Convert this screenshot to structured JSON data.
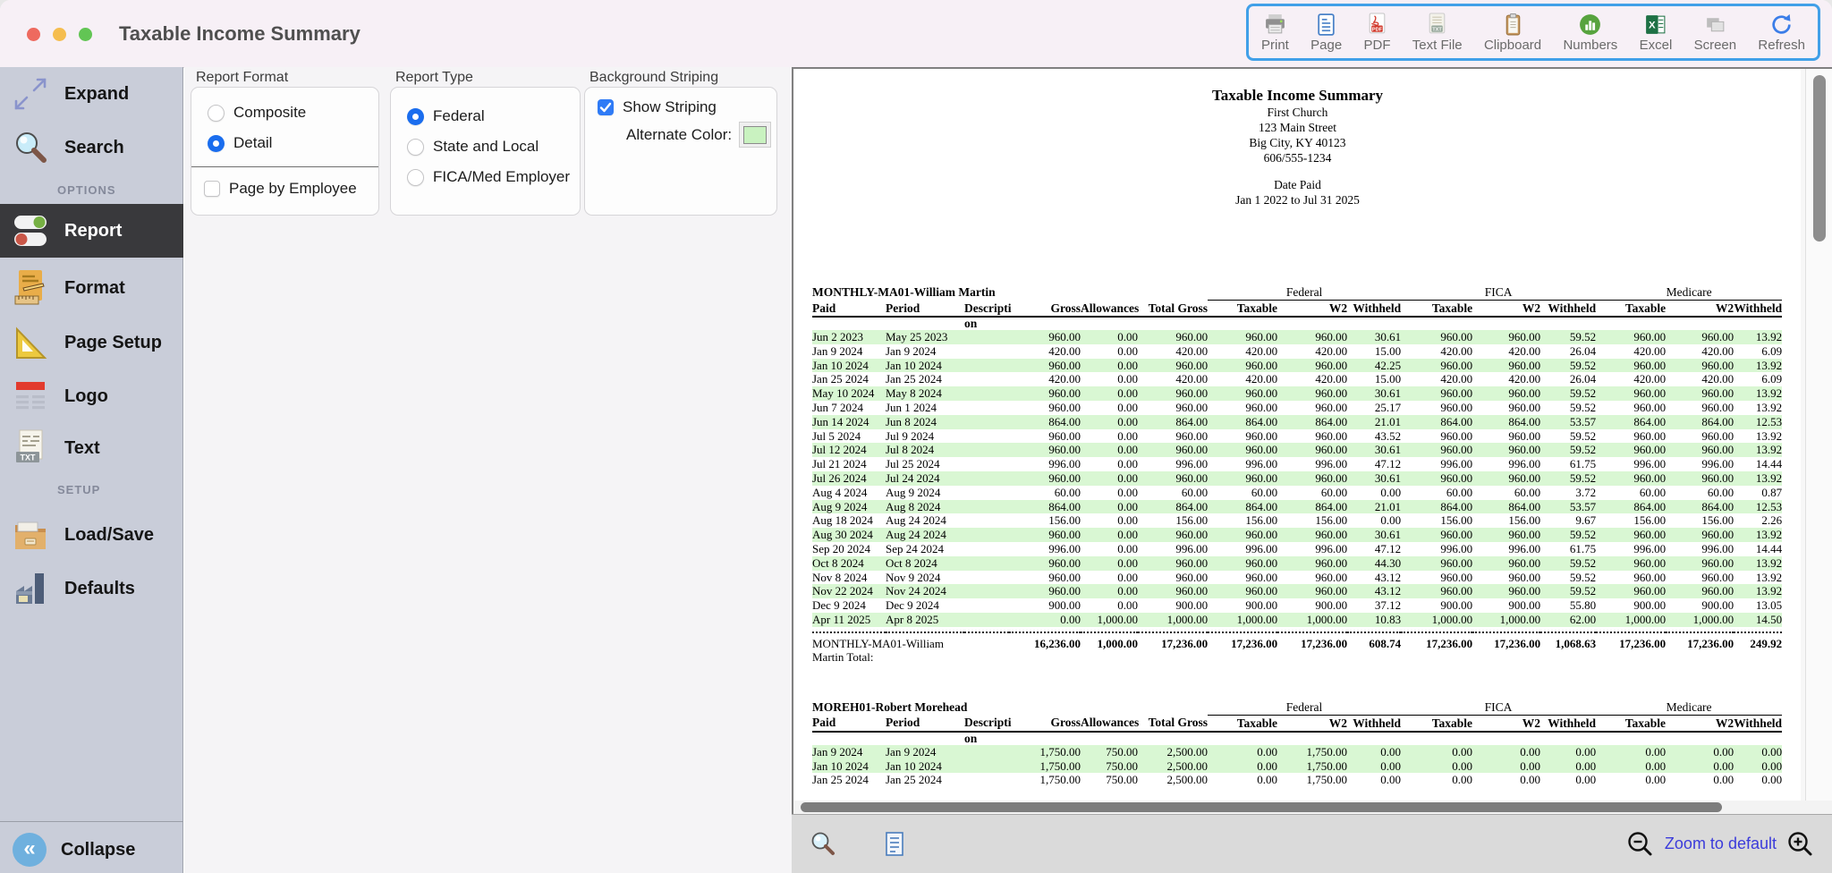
{
  "window": {
    "title": "Taxable Income Summary"
  },
  "toolbar": {
    "border_color": "#41a0e8",
    "items": [
      {
        "label": "Print",
        "icon": "printer-icon"
      },
      {
        "label": "Page",
        "icon": "page-icon"
      },
      {
        "label": "PDF",
        "icon": "pdf-file-icon"
      },
      {
        "label": "Text File",
        "icon": "txt-file-icon"
      },
      {
        "label": "Clipboard",
        "icon": "clipboard-icon"
      },
      {
        "label": "Numbers",
        "icon": "numbers-chart-icon"
      },
      {
        "label": "Excel",
        "icon": "excel-icon"
      },
      {
        "label": "Screen",
        "icon": "screen-icon"
      },
      {
        "label": "Refresh",
        "icon": "refresh-icon"
      }
    ]
  },
  "sidebar": {
    "items": [
      {
        "label": "Expand",
        "icon": "expand-icon"
      },
      {
        "label": "Search",
        "icon": "search-icon"
      },
      {
        "label": "Report",
        "icon": "toggles-icon",
        "selected": true
      },
      {
        "label": "Format",
        "icon": "format-doc-icon"
      },
      {
        "label": "Page Setup",
        "icon": "set-square-icon"
      },
      {
        "label": "Logo",
        "icon": "logo-banner-icon"
      },
      {
        "label": "Text",
        "icon": "txt-doc-icon"
      },
      {
        "label": "Load/Save",
        "icon": "folder-icon"
      },
      {
        "label": "Defaults",
        "icon": "factory-icon"
      }
    ],
    "options_header": "OPTIONS",
    "setup_header": "SETUP",
    "collapse_label": "Collapse"
  },
  "panels": {
    "report_format": {
      "title": "Report Format",
      "options": [
        {
          "label": "Composite",
          "checked": false
        },
        {
          "label": "Detail",
          "checked": true
        }
      ],
      "checkbox": {
        "label": "Page by Employee",
        "checked": false
      }
    },
    "report_type": {
      "title": "Report Type",
      "options": [
        {
          "label": "Federal",
          "checked": true
        },
        {
          "label": "State and Local",
          "checked": false
        },
        {
          "label": "FICA/Med Employer",
          "checked": false
        }
      ]
    },
    "background_striping": {
      "title": "Background Striping",
      "show_striping": {
        "label": "Show Striping",
        "checked": true
      },
      "alternate_color_label": "Alternate Color:",
      "alternate_color": "#c9f2c0"
    }
  },
  "report": {
    "header": {
      "title": "Taxable Income Summary",
      "company": "First Church",
      "address1": "123 Main Street",
      "address2": "Big City, KY  40123",
      "phone": "606/555-1234",
      "date_label": "Date Paid",
      "date_range": "Jan 1 2022 to Jul 31 2025"
    },
    "group_headers": [
      "Federal",
      "FICA",
      "Medicare"
    ],
    "columns": [
      "Paid",
      "Period",
      "Descripti",
      "Gross",
      "Allowances",
      "Total Gross",
      "Taxable",
      "W2",
      "Withheld",
      "Taxable",
      "W2",
      "Withheld",
      "Taxable",
      "W2",
      "Withheld"
    ],
    "description_overflow": "on",
    "stripe_color": "#d9f7d3",
    "sections": [
      {
        "employee": "MONTHLY-MA01-William Martin",
        "stripes": [
          1,
          0,
          1,
          0,
          1,
          0,
          1,
          0,
          1,
          0,
          1,
          0,
          1,
          0,
          1,
          0,
          1,
          0,
          1,
          0,
          1
        ],
        "rows": [
          [
            "Jun 2 2023",
            "May 25 2023",
            "",
            "960.00",
            "0.00",
            "960.00",
            "960.00",
            "960.00",
            "30.61",
            "960.00",
            "960.00",
            "59.52",
            "960.00",
            "960.00",
            "13.92"
          ],
          [
            "Jan 9 2024",
            "Jan 9 2024",
            "",
            "420.00",
            "0.00",
            "420.00",
            "420.00",
            "420.00",
            "15.00",
            "420.00",
            "420.00",
            "26.04",
            "420.00",
            "420.00",
            "6.09"
          ],
          [
            "Jan 10 2024",
            "Jan 10 2024",
            "",
            "960.00",
            "0.00",
            "960.00",
            "960.00",
            "960.00",
            "42.25",
            "960.00",
            "960.00",
            "59.52",
            "960.00",
            "960.00",
            "13.92"
          ],
          [
            "Jan 25 2024",
            "Jan 25 2024",
            "",
            "420.00",
            "0.00",
            "420.00",
            "420.00",
            "420.00",
            "15.00",
            "420.00",
            "420.00",
            "26.04",
            "420.00",
            "420.00",
            "6.09"
          ],
          [
            "May 10 2024",
            "May 8 2024",
            "",
            "960.00",
            "0.00",
            "960.00",
            "960.00",
            "960.00",
            "30.61",
            "960.00",
            "960.00",
            "59.52",
            "960.00",
            "960.00",
            "13.92"
          ],
          [
            "Jun 7 2024",
            "Jun 1 2024",
            "",
            "960.00",
            "0.00",
            "960.00",
            "960.00",
            "960.00",
            "25.17",
            "960.00",
            "960.00",
            "59.52",
            "960.00",
            "960.00",
            "13.92"
          ],
          [
            "Jun 14 2024",
            "Jun 8 2024",
            "",
            "864.00",
            "0.00",
            "864.00",
            "864.00",
            "864.00",
            "21.01",
            "864.00",
            "864.00",
            "53.57",
            "864.00",
            "864.00",
            "12.53"
          ],
          [
            "Jul 5 2024",
            "Jul 9 2024",
            "",
            "960.00",
            "0.00",
            "960.00",
            "960.00",
            "960.00",
            "43.52",
            "960.00",
            "960.00",
            "59.52",
            "960.00",
            "960.00",
            "13.92"
          ],
          [
            "Jul 12 2024",
            "Jul 8 2024",
            "",
            "960.00",
            "0.00",
            "960.00",
            "960.00",
            "960.00",
            "30.61",
            "960.00",
            "960.00",
            "59.52",
            "960.00",
            "960.00",
            "13.92"
          ],
          [
            "Jul 21 2024",
            "Jul 25 2024",
            "",
            "996.00",
            "0.00",
            "996.00",
            "996.00",
            "996.00",
            "47.12",
            "996.00",
            "996.00",
            "61.75",
            "996.00",
            "996.00",
            "14.44"
          ],
          [
            "Jul 26 2024",
            "Jul 24 2024",
            "",
            "960.00",
            "0.00",
            "960.00",
            "960.00",
            "960.00",
            "30.61",
            "960.00",
            "960.00",
            "59.52",
            "960.00",
            "960.00",
            "13.92"
          ],
          [
            "Aug 4 2024",
            "Aug 9 2024",
            "",
            "60.00",
            "0.00",
            "60.00",
            "60.00",
            "60.00",
            "0.00",
            "60.00",
            "60.00",
            "3.72",
            "60.00",
            "60.00",
            "0.87"
          ],
          [
            "Aug 9 2024",
            "Aug 8 2024",
            "",
            "864.00",
            "0.00",
            "864.00",
            "864.00",
            "864.00",
            "21.01",
            "864.00",
            "864.00",
            "53.57",
            "864.00",
            "864.00",
            "12.53"
          ],
          [
            "Aug 18 2024",
            "Aug 24 2024",
            "",
            "156.00",
            "0.00",
            "156.00",
            "156.00",
            "156.00",
            "0.00",
            "156.00",
            "156.00",
            "9.67",
            "156.00",
            "156.00",
            "2.26"
          ],
          [
            "Aug 30 2024",
            "Aug 24 2024",
            "",
            "960.00",
            "0.00",
            "960.00",
            "960.00",
            "960.00",
            "30.61",
            "960.00",
            "960.00",
            "59.52",
            "960.00",
            "960.00",
            "13.92"
          ],
          [
            "Sep 20 2024",
            "Sep 24 2024",
            "",
            "996.00",
            "0.00",
            "996.00",
            "996.00",
            "996.00",
            "47.12",
            "996.00",
            "996.00",
            "61.75",
            "996.00",
            "996.00",
            "14.44"
          ],
          [
            "Oct 8 2024",
            "Oct 8 2024",
            "",
            "960.00",
            "0.00",
            "960.00",
            "960.00",
            "960.00",
            "44.30",
            "960.00",
            "960.00",
            "59.52",
            "960.00",
            "960.00",
            "13.92"
          ],
          [
            "Nov 8 2024",
            "Nov 9 2024",
            "",
            "960.00",
            "0.00",
            "960.00",
            "960.00",
            "960.00",
            "43.12",
            "960.00",
            "960.00",
            "59.52",
            "960.00",
            "960.00",
            "13.92"
          ],
          [
            "Nov 22 2024",
            "Nov 24 2024",
            "",
            "960.00",
            "0.00",
            "960.00",
            "960.00",
            "960.00",
            "43.12",
            "960.00",
            "960.00",
            "59.52",
            "960.00",
            "960.00",
            "13.92"
          ],
          [
            "Dec 9 2024",
            "Dec 9 2024",
            "",
            "900.00",
            "0.00",
            "900.00",
            "900.00",
            "900.00",
            "37.12",
            "900.00",
            "900.00",
            "55.80",
            "900.00",
            "900.00",
            "13.05"
          ],
          [
            "Apr 11 2025",
            "Apr 8 2025",
            "",
            "0.00",
            "1,000.00",
            "1,000.00",
            "1,000.00",
            "1,000.00",
            "10.83",
            "1,000.00",
            "1,000.00",
            "62.00",
            "1,000.00",
            "1,000.00",
            "14.50"
          ]
        ],
        "total_label_lines": [
          "MONTHLY-MA01-William",
          "Martin Total:"
        ],
        "totals": [
          "16,236.00",
          "1,000.00",
          "17,236.00",
          "17,236.00",
          "17,236.00",
          "608.74",
          "17,236.00",
          "17,236.00",
          "1,068.63",
          "17,236.00",
          "17,236.00",
          "249.92"
        ]
      },
      {
        "employee": "MOREH01-Robert Morehead",
        "stripes": [
          1,
          1,
          0
        ],
        "rows": [
          [
            "Jan 9 2024",
            "Jan 9 2024",
            "",
            "1,750.00",
            "750.00",
            "2,500.00",
            "0.00",
            "1,750.00",
            "0.00",
            "0.00",
            "0.00",
            "0.00",
            "0.00",
            "0.00",
            "0.00"
          ],
          [
            "Jan 10 2024",
            "Jan 10 2024",
            "",
            "1,750.00",
            "750.00",
            "2,500.00",
            "0.00",
            "1,750.00",
            "0.00",
            "0.00",
            "0.00",
            "0.00",
            "0.00",
            "0.00",
            "0.00"
          ],
          [
            "Jan 25 2024",
            "Jan 25 2024",
            "",
            "1,750.00",
            "750.00",
            "2,500.00",
            "0.00",
            "1,750.00",
            "0.00",
            "0.00",
            "0.00",
            "0.00",
            "0.00",
            "0.00",
            "0.00"
          ]
        ],
        "total_label_lines": null,
        "totals": null
      }
    ]
  },
  "preview_footer": {
    "zoom_label": "Zoom to default"
  }
}
